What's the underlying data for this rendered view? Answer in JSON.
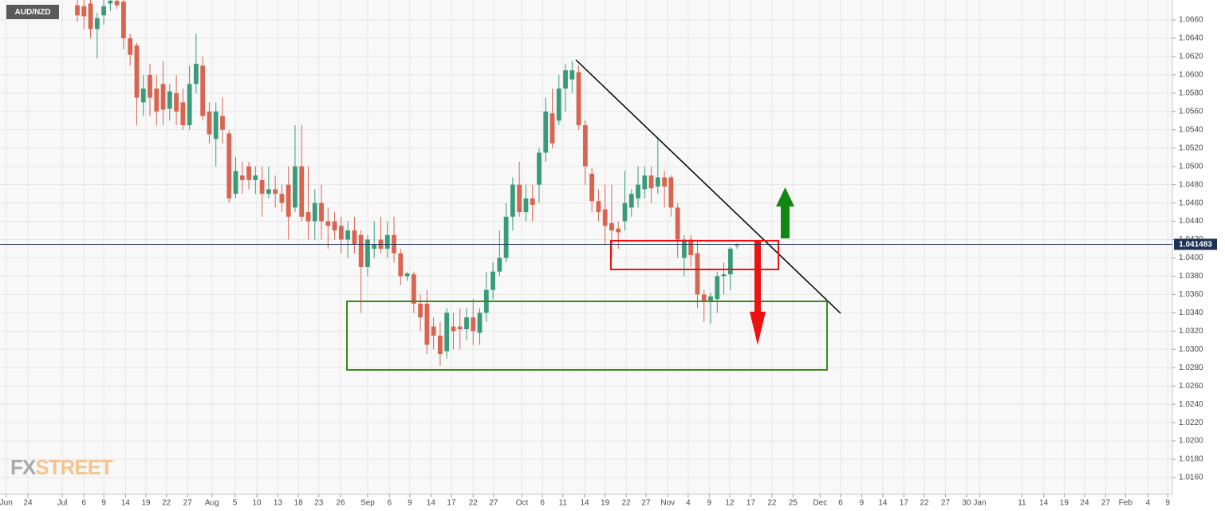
{
  "chart_data": {
    "type": "candlestick",
    "title": "AUD/NZD",
    "watermark_fx": "FX",
    "watermark_street": "STREET",
    "up_color": "#3a9b7a",
    "down_color": "#d9644f",
    "grid": true,
    "last_price": 1.041483,
    "ohlc": [
      [
        1.0676,
        1.0682,
        1.0658,
        1.0665
      ],
      [
        1.0675,
        1.0682,
        1.065,
        1.0664
      ],
      [
        1.0678,
        1.0682,
        1.064,
        1.065
      ],
      [
        1.065,
        1.0668,
        1.0618,
        1.0662
      ],
      [
        1.0665,
        1.0682,
        1.0655,
        1.0675
      ],
      [
        1.0678,
        1.0682,
        1.067,
        1.0681
      ],
      [
        1.0681,
        1.0682,
        1.0672,
        1.0676
      ],
      [
        1.068,
        1.0682,
        1.0628,
        1.064
      ],
      [
        1.064,
        1.0645,
        1.061,
        1.0622
      ],
      [
        1.0632,
        1.0635,
        1.0545,
        1.0575
      ],
      [
        1.057,
        1.06,
        1.0555,
        1.0585
      ],
      [
        1.06,
        1.0612,
        1.0555,
        1.0575
      ],
      [
        1.0585,
        1.06,
        1.0545,
        1.056
      ],
      [
        1.059,
        1.0615,
        1.0545,
        1.0562
      ],
      [
        1.0563,
        1.059,
        1.055,
        1.0582
      ],
      [
        1.058,
        1.06,
        1.0545,
        1.056
      ],
      [
        1.057,
        1.0585,
        1.054,
        1.0545
      ],
      [
        1.0545,
        1.061,
        1.054,
        1.059
      ],
      [
        1.059,
        1.0645,
        1.058,
        1.0612
      ],
      [
        1.061,
        1.062,
        1.055,
        1.0555
      ],
      [
        1.056,
        1.057,
        1.0525,
        1.0535
      ],
      [
        1.053,
        1.057,
        1.05,
        1.056
      ],
      [
        1.0555,
        1.0575,
        1.0525,
        1.054
      ],
      [
        1.0536,
        1.054,
        1.046,
        1.0465
      ],
      [
        1.047,
        1.051,
        1.0465,
        1.0495
      ],
      [
        1.049,
        1.0505,
        1.047,
        1.0485
      ],
      [
        1.05,
        1.0505,
        1.0475,
        1.0485
      ],
      [
        1.0485,
        1.05,
        1.047,
        1.049
      ],
      [
        1.0485,
        1.05,
        1.0445,
        1.047
      ],
      [
        1.047,
        1.05,
        1.0465,
        1.0475
      ],
      [
        1.0475,
        1.049,
        1.0455,
        1.047
      ],
      [
        1.047,
        1.048,
        1.045,
        1.046
      ],
      [
        1.048,
        1.05,
        1.042,
        1.0445
      ],
      [
        1.0455,
        1.0545,
        1.045,
        1.05
      ],
      [
        1.05,
        1.0545,
        1.044,
        1.0445
      ],
      [
        1.045,
        1.05,
        1.042,
        1.044
      ],
      [
        1.044,
        1.0475,
        1.042,
        1.046
      ],
      [
        1.046,
        1.048,
        1.042,
        1.044
      ],
      [
        1.044,
        1.0455,
        1.041,
        1.0435
      ],
      [
        1.044,
        1.045,
        1.042,
        1.043
      ],
      [
        1.0435,
        1.0445,
        1.0405,
        1.042
      ],
      [
        1.042,
        1.044,
        1.04,
        1.043
      ],
      [
        1.043,
        1.0445,
        1.0405,
        1.0415
      ],
      [
        1.0425,
        1.043,
        1.034,
        1.039
      ],
      [
        1.039,
        1.0425,
        1.038,
        1.042
      ],
      [
        1.041,
        1.044,
        1.04,
        1.0415
      ],
      [
        1.042,
        1.0445,
        1.0405,
        1.041
      ],
      [
        1.041,
        1.044,
        1.04,
        1.0425
      ],
      [
        1.0425,
        1.0445,
        1.0395,
        1.0405
      ],
      [
        1.0405,
        1.041,
        1.037,
        1.038
      ],
      [
        1.038,
        1.0385,
        1.0375,
        1.0383
      ],
      [
        1.0382,
        1.0385,
        1.034,
        1.035
      ],
      [
        1.035,
        1.036,
        1.032,
        1.0335
      ],
      [
        1.035,
        1.0365,
        1.0295,
        1.0305
      ],
      [
        1.0325,
        1.0335,
        1.03,
        1.0315
      ],
      [
        1.0315,
        1.033,
        1.0282,
        1.0295
      ],
      [
        1.0298,
        1.0345,
        1.029,
        1.034
      ],
      [
        1.0325,
        1.034,
        1.03,
        1.032
      ],
      [
        1.0325,
        1.0345,
        1.03,
        1.0322
      ],
      [
        1.0322,
        1.0345,
        1.031,
        1.0335
      ],
      [
        1.0335,
        1.0355,
        1.0305,
        1.032
      ],
      [
        1.0318,
        1.0345,
        1.0305,
        1.034
      ],
      [
        1.034,
        1.0385,
        1.033,
        1.0365
      ],
      [
        1.0365,
        1.0395,
        1.0355,
        1.0385
      ],
      [
        1.0385,
        1.043,
        1.038,
        1.04
      ],
      [
        1.04,
        1.046,
        1.0395,
        1.0445
      ],
      [
        1.0445,
        1.0488,
        1.043,
        1.048
      ],
      [
        1.048,
        1.0505,
        1.0445,
        1.045
      ],
      [
        1.045,
        1.048,
        1.044,
        1.0465
      ],
      [
        1.0465,
        1.048,
        1.044,
        1.0458
      ],
      [
        1.048,
        1.052,
        1.046,
        1.0515
      ],
      [
        1.0515,
        1.0575,
        1.0505,
        1.056
      ],
      [
        1.0558,
        1.0585,
        1.052,
        1.0525
      ],
      [
        1.055,
        1.06,
        1.0545,
        1.0585
      ],
      [
        1.0585,
        1.0612,
        1.056,
        1.0605
      ],
      [
        1.0595,
        1.0615,
        1.058,
        1.0605
      ],
      [
        1.0603,
        1.061,
        1.054,
        1.0545
      ],
      [
        1.0545,
        1.055,
        1.048,
        1.05
      ],
      [
        1.0492,
        1.0498,
        1.045,
        1.0462
      ],
      [
        1.0462,
        1.0475,
        1.044,
        1.045
      ],
      [
        1.0453,
        1.048,
        1.0415,
        1.0435
      ],
      [
        1.0438,
        1.048,
        1.04,
        1.043
      ],
      [
        1.0432,
        1.044,
        1.041,
        1.0428
      ],
      [
        1.044,
        1.0495,
        1.043,
        1.046
      ],
      [
        1.0455,
        1.0475,
        1.0445,
        1.047
      ],
      [
        1.0465,
        1.05,
        1.0455,
        1.048
      ],
      [
        1.0475,
        1.05,
        1.0465,
        1.049
      ],
      [
        1.049,
        1.05,
        1.046,
        1.0476
      ],
      [
        1.0478,
        1.053,
        1.047,
        1.0488
      ],
      [
        1.0488,
        1.0495,
        1.0455,
        1.0478
      ],
      [
        1.0488,
        1.049,
        1.0445,
        1.0455
      ],
      [
        1.0455,
        1.046,
        1.04,
        1.042
      ],
      [
        1.04,
        1.0425,
        1.038,
        1.042
      ],
      [
        1.042,
        1.0425,
        1.039,
        1.0403
      ],
      [
        1.0405,
        1.042,
        1.0345,
        1.036
      ],
      [
        1.036,
        1.0365,
        1.033,
        1.0353
      ],
      [
        1.0352,
        1.0362,
        1.0328,
        1.0358
      ],
      [
        1.0355,
        1.0385,
        1.034,
        1.038
      ],
      [
        1.038,
        1.0395,
        1.036,
        1.0382
      ],
      [
        1.0382,
        1.0412,
        1.0365,
        1.041
      ],
      [
        1.0413,
        1.0416,
        1.041,
        1.0414
      ]
    ],
    "xlim": [
      -11.73,
      166.0
    ],
    "xticks": [
      {
        "value": -10.8,
        "label": "Jun"
      },
      {
        "value": -7.5,
        "label": "24"
      },
      {
        "value": -2.3,
        "label": "Jul"
      },
      {
        "value": 1.0,
        "label": "6"
      },
      {
        "value": 4.0,
        "label": "9"
      },
      {
        "value": 7.3,
        "label": "14"
      },
      {
        "value": 10.4,
        "label": "19"
      },
      {
        "value": 13.5,
        "label": "22"
      },
      {
        "value": 16.7,
        "label": "27"
      },
      {
        "value": 20.4,
        "label": "Aug"
      },
      {
        "value": 23.9,
        "label": "5"
      },
      {
        "value": 27.2,
        "label": "10"
      },
      {
        "value": 30.4,
        "label": "13"
      },
      {
        "value": 33.5,
        "label": "18"
      },
      {
        "value": 36.6,
        "label": "23"
      },
      {
        "value": 39.9,
        "label": "26"
      },
      {
        "value": 44.0,
        "label": "Sep"
      },
      {
        "value": 47.3,
        "label": "6"
      },
      {
        "value": 50.4,
        "label": "9"
      },
      {
        "value": 53.6,
        "label": "14"
      },
      {
        "value": 56.7,
        "label": "17"
      },
      {
        "value": 60.0,
        "label": "22"
      },
      {
        "value": 63.1,
        "label": "27"
      },
      {
        "value": 67.4,
        "label": "Oct"
      },
      {
        "value": 70.5,
        "label": "6"
      },
      {
        "value": 73.6,
        "label": "11"
      },
      {
        "value": 76.9,
        "label": "14"
      },
      {
        "value": 80.0,
        "label": "19"
      },
      {
        "value": 83.2,
        "label": "22"
      },
      {
        "value": 86.2,
        "label": "27"
      },
      {
        "value": 89.5,
        "label": "Nov"
      },
      {
        "value": 92.6,
        "label": "4"
      },
      {
        "value": 95.8,
        "label": "9"
      },
      {
        "value": 98.9,
        "label": "12"
      },
      {
        "value": 102.1,
        "label": "17"
      },
      {
        "value": 105.3,
        "label": "22"
      },
      {
        "value": 108.5,
        "label": "25"
      },
      {
        "value": 112.6,
        "label": "Dec"
      },
      {
        "value": 115.7,
        "label": "6"
      },
      {
        "value": 118.9,
        "label": "9"
      },
      {
        "value": 122.1,
        "label": "14"
      },
      {
        "value": 125.3,
        "label": "17"
      },
      {
        "value": 128.4,
        "label": "22"
      },
      {
        "value": 131.6,
        "label": "27"
      },
      {
        "value": 134.8,
        "label": "30"
      },
      {
        "value": 136.8,
        "label": "Jan"
      },
      {
        "value": 143.2,
        "label": "11"
      },
      {
        "value": 146.5,
        "label": "14"
      },
      {
        "value": 149.6,
        "label": "19"
      },
      {
        "value": 152.7,
        "label": "24"
      },
      {
        "value": 155.9,
        "label": "27"
      },
      {
        "value": 158.9,
        "label": "Feb"
      },
      {
        "value": 162.3,
        "label": "4"
      },
      {
        "value": 165.3,
        "label": "9"
      }
    ],
    "ylim": [
      1.01417,
      1.06818
    ],
    "yticks": [
      {
        "value": 1.016,
        "label": "1.0160"
      },
      {
        "value": 1.018,
        "label": "1.0180"
      },
      {
        "value": 1.02,
        "label": "1.0200"
      },
      {
        "value": 1.022,
        "label": "1.0220"
      },
      {
        "value": 1.024,
        "label": "1.0240"
      },
      {
        "value": 1.026,
        "label": "1.0260"
      },
      {
        "value": 1.028,
        "label": "1.0280"
      },
      {
        "value": 1.03,
        "label": "1.0300"
      },
      {
        "value": 1.032,
        "label": "1.0320"
      },
      {
        "value": 1.034,
        "label": "1.0340"
      },
      {
        "value": 1.036,
        "label": "1.0360"
      },
      {
        "value": 1.038,
        "label": "1.0380"
      },
      {
        "value": 1.04,
        "label": "1.0400"
      },
      {
        "value": 1.042,
        "label": "1.0420"
      },
      {
        "value": 1.044,
        "label": "1.0440"
      },
      {
        "value": 1.046,
        "label": "1.0460"
      },
      {
        "value": 1.048,
        "label": "1.0480"
      },
      {
        "value": 1.05,
        "label": "1.0500"
      },
      {
        "value": 1.052,
        "label": "1.0520"
      },
      {
        "value": 1.054,
        "label": "1.0540"
      },
      {
        "value": 1.056,
        "label": "1.0560"
      },
      {
        "value": 1.058,
        "label": "1.0580"
      },
      {
        "value": 1.06,
        "label": "1.0600"
      },
      {
        "value": 1.062,
        "label": "1.0620"
      },
      {
        "value": 1.064,
        "label": "1.0640"
      },
      {
        "value": 1.066,
        "label": "1.0660"
      }
    ]
  }
}
